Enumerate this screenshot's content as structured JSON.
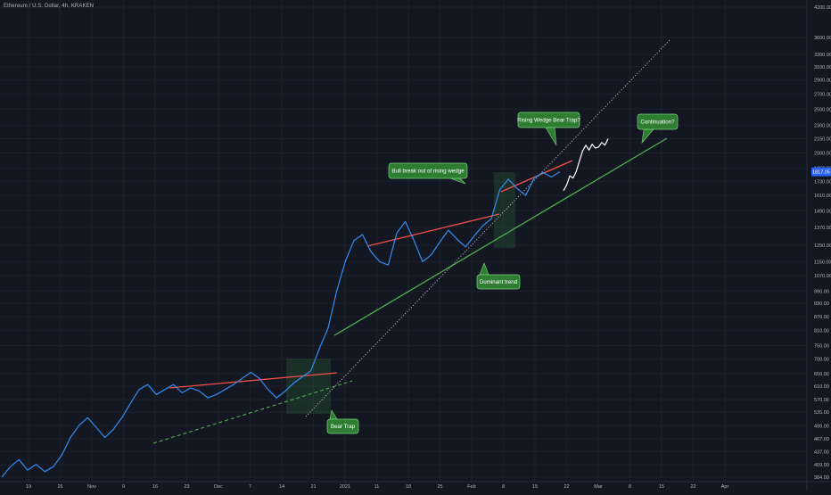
{
  "header": {
    "symbol_title": "Ethereum / U.S. Dollar, 4h, KRAKEN"
  },
  "chart_data": {
    "type": "line",
    "y_scale": "log",
    "ylim": [
      384,
      4200
    ],
    "y_ticks": [
      "4200.00",
      "3600.00",
      "3300.00",
      "3100.00",
      "2900.00",
      "2700.00",
      "2500.00",
      "2300.00",
      "2150.00",
      "2000.00",
      "1850.00",
      "1730.00",
      "1610.00",
      "1490.00",
      "1370.00",
      "1250.00",
      "1150.00",
      "1070.00",
      "990.00",
      "930.00",
      "870.00",
      "810.00",
      "750.00",
      "700.00",
      "650.00",
      "610.00",
      "570.00",
      "535.00",
      "499.00",
      "467.00",
      "437.00",
      "409.00",
      "384.00"
    ],
    "x_ticks": [
      "19",
      "26",
      "Nov",
      "9",
      "16",
      "23",
      "Dec",
      "7",
      "14",
      "21",
      "2021",
      "11",
      "18",
      "25",
      "Feb",
      "8",
      "15",
      "22",
      "Mar",
      "8",
      "15",
      "22",
      "Apr"
    ],
    "current_price_label": "1817.05",
    "grid": true,
    "series": [
      {
        "color": "#2f8ef0",
        "values": [
          384,
          405,
          420,
          398,
          410,
          395,
          405,
          430,
          470,
          500,
          520,
          495,
          470,
          490,
          520,
          560,
          600,
          615,
          585,
          600,
          615,
          590,
          605,
          595,
          575,
          585,
          600,
          615,
          635,
          655,
          635,
          600,
          575,
          595,
          620,
          640,
          660,
          740,
          820,
          990,
          1150,
          1280,
          1320,
          1210,
          1150,
          1130,
          1330,
          1410,
          1280,
          1150,
          1190,
          1270,
          1350,
          1290,
          1240,
          1310,
          1380,
          1430,
          1660,
          1750,
          1670,
          1610,
          1760,
          1810,
          1770,
          1817
        ]
      },
      {
        "color": "#ffffff",
        "values": [
          1650,
          1700,
          1780,
          1760,
          1820,
          1920,
          2020,
          2080,
          2030,
          2090,
          2050,
          2060,
          2110,
          2080,
          2150
        ]
      }
    ],
    "annotations": [
      {
        "text": "Bull break out of rising wedge",
        "color": "#2e7d32"
      },
      {
        "text": "Rising Wedge Bear Trap?",
        "color": "#2e7d32"
      },
      {
        "text": "Continuation?",
        "color": "#2e7d32"
      },
      {
        "text": "Dominant trend",
        "color": "#2e7d32"
      },
      {
        "text": "Bear Trap",
        "color": "#2e7d32"
      }
    ],
    "line_colors": {
      "resistance": "#f0504a",
      "support": "#4caf50",
      "projection": "#b2b5be"
    }
  }
}
